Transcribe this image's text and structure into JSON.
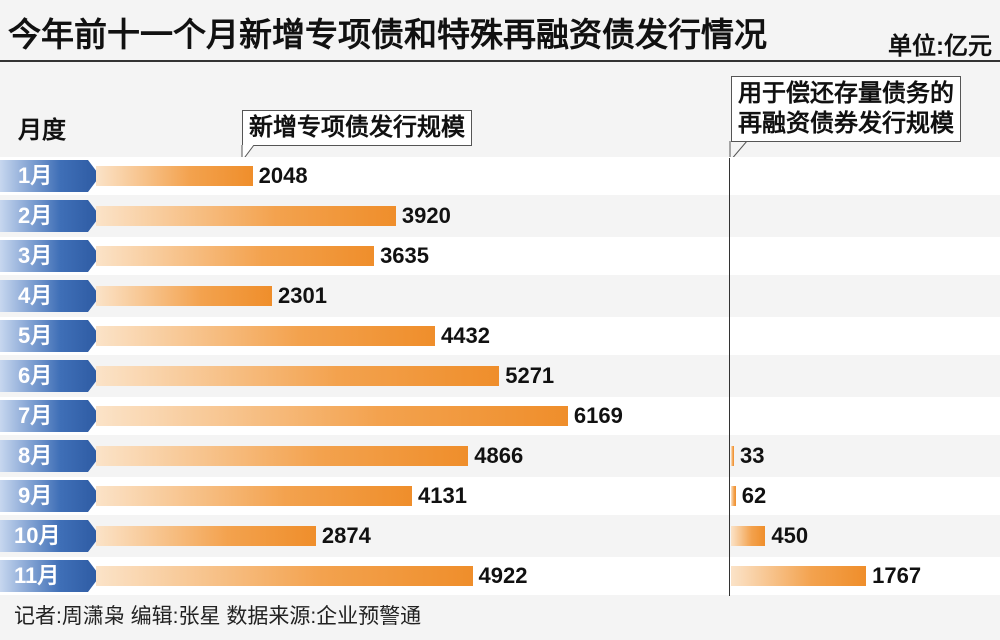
{
  "chart_data": {
    "type": "bar",
    "orientation": "horizontal",
    "title": "今年前十一个月新增专项债和特殊再融资债发行情况",
    "unit": "单位:亿元",
    "ylabel": "月度",
    "categories": [
      "1月",
      "2月",
      "3月",
      "4月",
      "5月",
      "6月",
      "7月",
      "8月",
      "9月",
      "10月",
      "11月"
    ],
    "series": [
      {
        "name": "新增专项债发行规模",
        "values": [
          2048,
          3920,
          3635,
          2301,
          4432,
          5271,
          6169,
          4866,
          4131,
          2874,
          4922
        ]
      },
      {
        "name": "用于偿还存量债务的再融资债券发行规模",
        "name_lines": [
          "用于偿还存量债务的",
          "再融资债券发行规模"
        ],
        "values": [
          null,
          null,
          null,
          null,
          null,
          null,
          null,
          33,
          62,
          450,
          1767
        ]
      }
    ],
    "colors": {
      "bar": "#ef8e2b",
      "month_tag": "#3f6fb7"
    }
  },
  "footer": "记者:周潇枭  编辑:张星  数据来源:企业预警通"
}
